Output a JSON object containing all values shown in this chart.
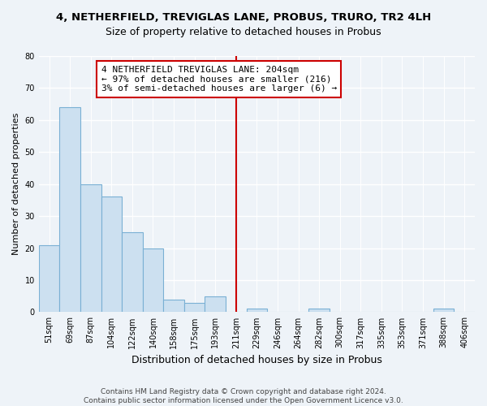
{
  "title": "4, NETHERFIELD, TREVIGLAS LANE, PROBUS, TRURO, TR2 4LH",
  "subtitle": "Size of property relative to detached houses in Probus",
  "xlabel": "Distribution of detached houses by size in Probus",
  "ylabel": "Number of detached properties",
  "bar_labels": [
    "51sqm",
    "69sqm",
    "87sqm",
    "104sqm",
    "122sqm",
    "140sqm",
    "158sqm",
    "175sqm",
    "193sqm",
    "211sqm",
    "229sqm",
    "246sqm",
    "264sqm",
    "282sqm",
    "300sqm",
    "317sqm",
    "335sqm",
    "353sqm",
    "371sqm",
    "388sqm",
    "406sqm"
  ],
  "bar_heights": [
    21,
    64,
    40,
    36,
    25,
    20,
    4,
    3,
    5,
    0,
    1,
    0,
    0,
    1,
    0,
    0,
    0,
    0,
    0,
    1,
    0
  ],
  "bar_color": "#cce0f0",
  "bar_edge_color": "#7ab0d4",
  "vline_color": "#cc0000",
  "vline_x_index": 9,
  "annotation_lines": [
    "4 NETHERFIELD TREVIGLAS LANE: 204sqm",
    "← 97% of detached houses are smaller (216)",
    "3% of semi-detached houses are larger (6) →"
  ],
  "ylim": [
    0,
    80
  ],
  "yticks": [
    0,
    10,
    20,
    30,
    40,
    50,
    60,
    70,
    80
  ],
  "footer": "Contains HM Land Registry data © Crown copyright and database right 2024.\nContains public sector information licensed under the Open Government Licence v3.0.",
  "bg_color": "#eef3f8",
  "grid_color": "#ffffff",
  "title_fontsize": 9.5,
  "subtitle_fontsize": 9,
  "tick_fontsize": 7,
  "ylabel_fontsize": 8,
  "xlabel_fontsize": 9,
  "annotation_fontsize": 8,
  "footer_fontsize": 6.5
}
